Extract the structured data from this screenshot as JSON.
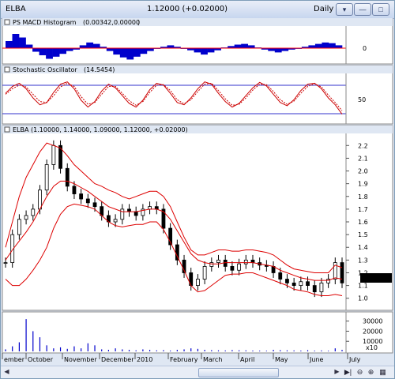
{
  "window": {
    "title": "ELBA",
    "price_change": "1.12000 (+0.02000)",
    "period": "Daily",
    "dropdown_icon": "chevron-down-icon",
    "min_icon": "minimize-icon",
    "max_icon": "maximize-icon",
    "close_icon": "close-icon"
  },
  "panels": {
    "macd": {
      "title": "PS MACD Histogram",
      "v1": "(0.00342,",
      "v2": "0.00000",
      "v2_color": "#ff0000",
      "close_paren": ")",
      "axis_tick": "0"
    },
    "stoch": {
      "title": "Stochastic Oscillator",
      "value": "(14.5454)",
      "value_color": "#ff0000",
      "axis_tick": "50"
    },
    "price": {
      "title": "ELBA (1.10000, 1.14000, 1.09000, 1.12000, +0.02000)",
      "last_price": "1.12000"
    },
    "volume": {
      "axis_multiplier": "x10"
    }
  },
  "x_labels": [
    "ember",
    "October",
    "November",
    "December",
    "2010",
    "February",
    "March",
    "April",
    "May",
    "June",
    "July"
  ],
  "chart_data": [
    {
      "type": "bar",
      "title": "PS MACD Histogram",
      "y_ticks": [
        "0"
      ],
      "series": [
        {
          "name": "MACD Histogram",
          "values": [
            0.01,
            0.02,
            0.015,
            0.005,
            -0.005,
            -0.01,
            -0.015,
            -0.012,
            -0.008,
            -0.004,
            -0.002,
            0.004,
            0.008,
            0.006,
            0.002,
            -0.004,
            -0.009,
            -0.013,
            -0.016,
            -0.012,
            -0.008,
            -0.004,
            -0.001,
            0.002,
            0.004,
            0.002,
            -0.001,
            -0.003,
            -0.006,
            -0.009,
            -0.006,
            -0.003,
            0.001,
            0.003,
            0.005,
            0.006,
            0.004,
            0.001,
            -0.002,
            -0.004,
            -0.006,
            -0.004,
            -0.002,
            -0.001,
            0.002,
            0.004,
            0.006,
            0.008,
            0.007,
            0.004
          ]
        }
      ]
    },
    {
      "type": "line",
      "title": "Stochastic Oscillator",
      "y_ticks": [
        "50"
      ],
      "ylim": [
        0,
        100
      ],
      "series": [
        {
          "name": "%K",
          "values": [
            60,
            75,
            82,
            70,
            50,
            35,
            40,
            62,
            80,
            85,
            70,
            45,
            30,
            42,
            65,
            80,
            72,
            55,
            38,
            30,
            45,
            68,
            82,
            78,
            60,
            40,
            35,
            50,
            70,
            85,
            80,
            60,
            42,
            30,
            38,
            55,
            72,
            84,
            76,
            58,
            40,
            33,
            46,
            66,
            80,
            82,
            70,
            50,
            35,
            14.5454
          ]
        },
        {
          "name": "%D",
          "values": [
            58,
            70,
            78,
            74,
            58,
            42,
            40,
            55,
            74,
            82,
            75,
            53,
            36,
            40,
            58,
            75,
            75,
            60,
            44,
            34,
            42,
            62,
            78,
            79,
            66,
            46,
            37,
            46,
            64,
            80,
            82,
            66,
            48,
            34,
            36,
            50,
            67,
            80,
            79,
            64,
            46,
            36,
            43,
            60,
            75,
            81,
            74,
            56,
            40,
            22
          ]
        }
      ]
    },
    {
      "type": "line",
      "title": "ELBA",
      "y_ticks": [
        "1.0",
        "1.1",
        "1.2",
        "1.3",
        "1.4",
        "1.5",
        "1.6",
        "1.7",
        "1.8",
        "1.9",
        "2.0",
        "2.1",
        "2.2"
      ],
      "ylim": [
        0.93,
        2.27
      ],
      "series": [
        {
          "name": "Close",
          "values": [
            1.28,
            1.5,
            1.62,
            1.65,
            1.7,
            1.85,
            2.05,
            2.2,
            2.02,
            1.88,
            1.82,
            1.78,
            1.75,
            1.72,
            1.65,
            1.6,
            1.62,
            1.7,
            1.68,
            1.65,
            1.7,
            1.72,
            1.7,
            1.55,
            1.42,
            1.3,
            1.2,
            1.1,
            1.15,
            1.25,
            1.28,
            1.3,
            1.25,
            1.22,
            1.27,
            1.3,
            1.28,
            1.26,
            1.25,
            1.2,
            1.15,
            1.12,
            1.1,
            1.13,
            1.1,
            1.05,
            1.12,
            1.15,
            1.28,
            1.12
          ]
        },
        {
          "name": "Upper Band",
          "values": [
            1.4,
            1.6,
            1.8,
            1.95,
            2.05,
            2.15,
            2.22,
            2.2,
            2.18,
            2.12,
            2.05,
            2.0,
            1.95,
            1.9,
            1.88,
            1.85,
            1.83,
            1.8,
            1.78,
            1.8,
            1.82,
            1.84,
            1.84,
            1.8,
            1.72,
            1.6,
            1.48,
            1.38,
            1.34,
            1.34,
            1.36,
            1.38,
            1.38,
            1.37,
            1.37,
            1.38,
            1.38,
            1.37,
            1.36,
            1.34,
            1.3,
            1.26,
            1.23,
            1.22,
            1.21,
            1.2,
            1.2,
            1.2,
            1.26,
            1.24
          ]
        },
        {
          "name": "Middle Band",
          "values": [
            1.3,
            1.38,
            1.45,
            1.52,
            1.6,
            1.7,
            1.8,
            1.88,
            1.92,
            1.92,
            1.9,
            1.87,
            1.84,
            1.8,
            1.76,
            1.72,
            1.7,
            1.68,
            1.68,
            1.68,
            1.69,
            1.7,
            1.7,
            1.68,
            1.62,
            1.53,
            1.44,
            1.35,
            1.3,
            1.28,
            1.27,
            1.27,
            1.28,
            1.28,
            1.28,
            1.28,
            1.28,
            1.27,
            1.26,
            1.25,
            1.22,
            1.2,
            1.18,
            1.16,
            1.15,
            1.14,
            1.14,
            1.14,
            1.16,
            1.15
          ]
        },
        {
          "name": "Lower Band",
          "values": [
            1.15,
            1.1,
            1.1,
            1.15,
            1.22,
            1.3,
            1.4,
            1.55,
            1.66,
            1.72,
            1.74,
            1.73,
            1.72,
            1.7,
            1.65,
            1.6,
            1.57,
            1.56,
            1.57,
            1.58,
            1.58,
            1.6,
            1.6,
            1.54,
            1.44,
            1.33,
            1.22,
            1.1,
            1.05,
            1.06,
            1.1,
            1.14,
            1.18,
            1.19,
            1.19,
            1.2,
            1.2,
            1.18,
            1.16,
            1.14,
            1.12,
            1.1,
            1.07,
            1.06,
            1.05,
            1.03,
            1.02,
            1.02,
            1.03,
            1.02
          ]
        }
      ]
    },
    {
      "type": "bar",
      "title": "Volume",
      "y_ticks": [
        "10000",
        "20000",
        "30000"
      ],
      "ylim": [
        0,
        36000
      ],
      "series": [
        {
          "name": "Volume",
          "values": [
            2000,
            5000,
            9000,
            32000,
            20000,
            14000,
            6000,
            3000,
            4000,
            2500,
            5000,
            3000,
            8000,
            6000,
            2000,
            1500,
            3000,
            2000,
            1500,
            1000,
            2000,
            1500,
            1000,
            1200,
            800,
            1500,
            2000,
            3000,
            2500,
            1500,
            1200,
            1000,
            900,
            1300,
            1100,
            1000,
            800,
            700,
            600,
            1500,
            1200,
            1000,
            900,
            800,
            1200,
            700,
            900,
            600,
            3000,
            1500
          ]
        }
      ]
    }
  ]
}
